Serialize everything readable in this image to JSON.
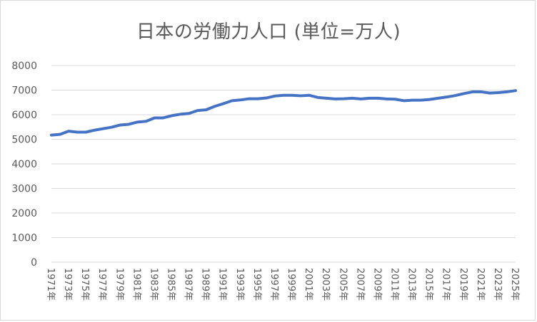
{
  "chart_data": {
    "type": "line",
    "title": "日本の労働力人口 (単位=万人)",
    "ylim": [
      0,
      8000
    ],
    "yticks": [
      0,
      1000,
      2000,
      3000,
      4000,
      5000,
      6000,
      7000,
      8000
    ],
    "grid": true,
    "legend": "none",
    "x_tick_labels": [
      "1971年",
      "1973年",
      "1975年",
      "1977年",
      "1979年",
      "1981年",
      "1983年",
      "1985年",
      "1987年",
      "1989年",
      "1991年",
      "1993年",
      "1995年",
      "1997年",
      "1999年",
      "2001年",
      "2003年",
      "2005年",
      "2007年",
      "2009年",
      "2011年",
      "2013年",
      "2015年",
      "2017年",
      "2019年",
      "2021年",
      "2023年",
      "2025年"
    ],
    "x": [
      1971,
      1972,
      1973,
      1974,
      1975,
      1976,
      1977,
      1978,
      1979,
      1980,
      1981,
      1982,
      1983,
      1984,
      1985,
      1986,
      1987,
      1988,
      1989,
      1990,
      1991,
      1992,
      1993,
      1994,
      1995,
      1996,
      1997,
      1998,
      1999,
      2000,
      2001,
      2002,
      2003,
      2004,
      2005,
      2006,
      2007,
      2008,
      2009,
      2010,
      2011,
      2012,
      2013,
      2014,
      2015,
      2016,
      2017,
      2018,
      2019,
      2020,
      2021,
      2022,
      2023,
      2024,
      2025
    ],
    "series": [
      {
        "color": "#4472c4",
        "values": [
          5170,
          5200,
          5330,
          5290,
          5290,
          5370,
          5430,
          5490,
          5580,
          5610,
          5700,
          5730,
          5870,
          5870,
          5960,
          6020,
          6050,
          6170,
          6200,
          6340,
          6450,
          6570,
          6600,
          6650,
          6650,
          6680,
          6760,
          6790,
          6790,
          6770,
          6790,
          6700,
          6670,
          6640,
          6650,
          6670,
          6640,
          6670,
          6670,
          6640,
          6630,
          6570,
          6590,
          6590,
          6620,
          6670,
          6720,
          6780,
          6860,
          6930,
          6930,
          6880,
          6900,
          6930,
          6980
        ]
      }
    ]
  }
}
